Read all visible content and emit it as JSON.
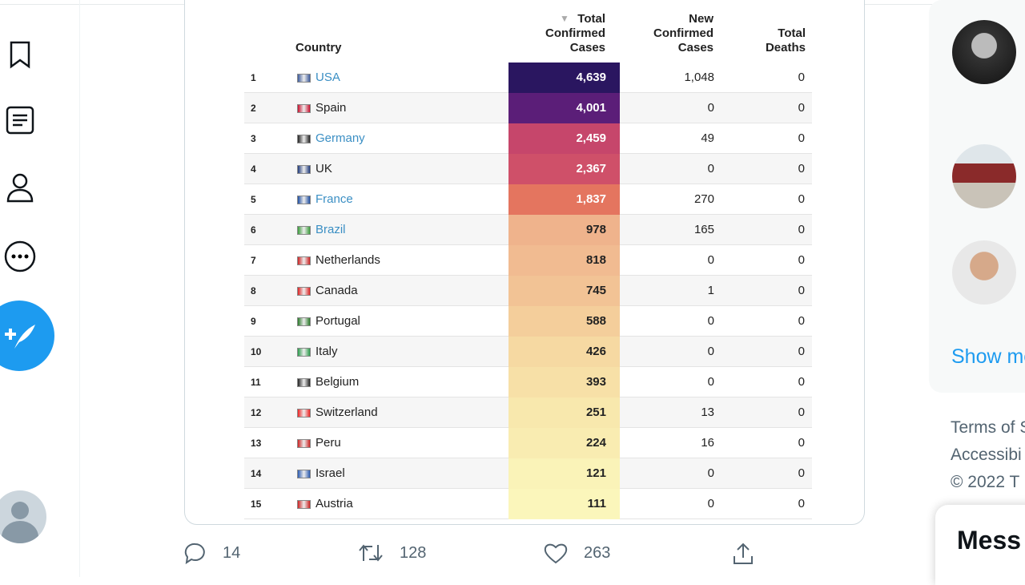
{
  "table": {
    "headers": {
      "country": "Country",
      "total": [
        "Total",
        "Confirmed",
        "Cases"
      ],
      "new": [
        "New",
        "Confirmed",
        "Cases"
      ],
      "deaths": [
        "Total",
        "Deaths"
      ]
    },
    "sort_icon": "triangle-down-icon",
    "rows": [
      {
        "rank": "1",
        "country": "USA",
        "link": true,
        "total": "4,639",
        "new": "1,048",
        "deaths": "0",
        "color": "#2a1660"
      },
      {
        "rank": "2",
        "country": "Spain",
        "link": false,
        "total": "4,001",
        "new": "0",
        "deaths": "0",
        "color": "#5b1e78"
      },
      {
        "rank": "3",
        "country": "Germany",
        "link": true,
        "total": "2,459",
        "new": "49",
        "deaths": "0",
        "color": "#c6466b"
      },
      {
        "rank": "4",
        "country": "UK",
        "link": false,
        "total": "2,367",
        "new": "0",
        "deaths": "0",
        "color": "#cf5069"
      },
      {
        "rank": "5",
        "country": "France",
        "link": true,
        "total": "1,837",
        "new": "270",
        "deaths": "0",
        "color": "#e4755f"
      },
      {
        "rank": "6",
        "country": "Brazil",
        "link": true,
        "total": "978",
        "new": "165",
        "deaths": "0",
        "color": "#efb38c"
      },
      {
        "rank": "7",
        "country": "Netherlands",
        "link": false,
        "total": "818",
        "new": "0",
        "deaths": "0",
        "color": "#f1bb91"
      },
      {
        "rank": "8",
        "country": "Canada",
        "link": false,
        "total": "745",
        "new": "1",
        "deaths": "0",
        "color": "#f2c395"
      },
      {
        "rank": "9",
        "country": "Portugal",
        "link": false,
        "total": "588",
        "new": "0",
        "deaths": "0",
        "color": "#f4ce9b"
      },
      {
        "rank": "10",
        "country": "Italy",
        "link": false,
        "total": "426",
        "new": "0",
        "deaths": "0",
        "color": "#f6d9a2"
      },
      {
        "rank": "11",
        "country": "Belgium",
        "link": false,
        "total": "393",
        "new": "0",
        "deaths": "0",
        "color": "#f7e0a7"
      },
      {
        "rank": "12",
        "country": "Switzerland",
        "link": false,
        "total": "251",
        "new": "13",
        "deaths": "0",
        "color": "#f8e8ad"
      },
      {
        "rank": "13",
        "country": "Peru",
        "link": false,
        "total": "224",
        "new": "16",
        "deaths": "0",
        "color": "#f9ecb1"
      },
      {
        "rank": "14",
        "country": "Israel",
        "link": false,
        "total": "121",
        "new": "0",
        "deaths": "0",
        "color": "#faf3b8"
      },
      {
        "rank": "15",
        "country": "Austria",
        "link": false,
        "total": "111",
        "new": "0",
        "deaths": "0",
        "color": "#fbf6bb"
      }
    ]
  },
  "actions": {
    "replies": "14",
    "retweets": "128",
    "likes": "263"
  },
  "sidebar_right": {
    "show_more": "Show me",
    "footer": [
      "Terms of S",
      "Accessibi",
      "© 2022 T"
    ],
    "messages": "Mess"
  },
  "colors": {
    "accent": "#1d9bf0"
  }
}
